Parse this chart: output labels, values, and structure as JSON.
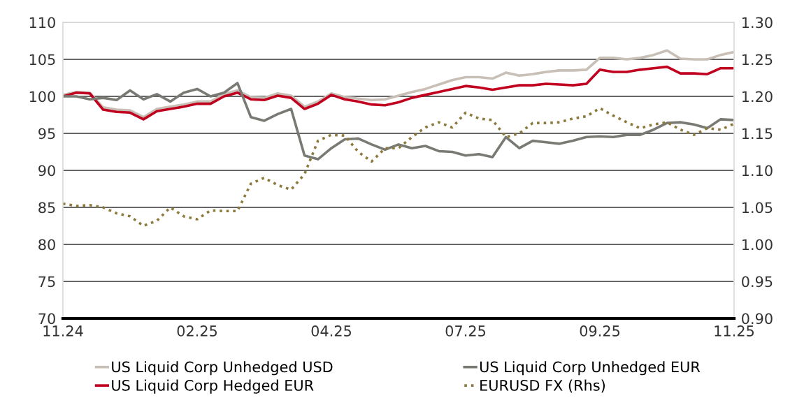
{
  "chart_data": {
    "type": "line",
    "categories": [
      "11.24",
      null,
      null,
      null,
      null,
      null,
      null,
      null,
      null,
      null,
      "02.25",
      null,
      null,
      null,
      null,
      null,
      null,
      null,
      null,
      null,
      "04.25",
      null,
      null,
      null,
      null,
      null,
      null,
      null,
      null,
      null,
      "07.25",
      null,
      null,
      null,
      null,
      null,
      null,
      null,
      null,
      null,
      "09.25",
      null,
      null,
      null,
      null,
      null,
      null,
      null,
      null,
      null,
      "11.25"
    ],
    "series": [
      {
        "name": "US Liquid Corp Unhedged USD",
        "color": "#c8bfb6",
        "values": [
          100.2,
          100.6,
          100.5,
          98.5,
          98.2,
          98.1,
          97.2,
          98.3,
          98.6,
          98.9,
          99.3,
          99.3,
          100.3,
          100.8,
          99.9,
          99.8,
          100.4,
          100.1,
          98.6,
          99.3,
          100.4,
          99.9,
          99.7,
          99.5,
          99.6,
          100.1,
          100.6,
          101,
          101.6,
          102.2,
          102.6,
          102.6,
          102.4,
          103.2,
          102.8,
          103,
          103.3,
          103.5,
          103.5,
          103.6,
          105.2,
          105.2,
          105,
          105.2,
          105.6,
          106.2,
          105.1,
          105,
          105,
          105.6,
          106
        ]
      },
      {
        "name": "US Liquid Corp Hedged EUR",
        "color": "#c0001e",
        "values": [
          100,
          100.5,
          100.4,
          98.2,
          97.9,
          97.8,
          96.9,
          98,
          98.3,
          98.6,
          99,
          99,
          100,
          100.5,
          99.6,
          99.5,
          100.1,
          99.8,
          98.3,
          99,
          100.2,
          99.6,
          99.3,
          98.9,
          98.8,
          99.2,
          99.8,
          100.2,
          100.6,
          101,
          101.4,
          101.2,
          100.9,
          101.2,
          101.5,
          101.5,
          101.7,
          101.6,
          101.5,
          101.7,
          103.6,
          103.3,
          103.3,
          103.6,
          103.8,
          104,
          103.1,
          103.1,
          103,
          103.8,
          103.8
        ]
      },
      {
        "name": "US Liquid Corp Unhedged EUR",
        "color": "#7a7a74",
        "values": [
          100,
          100,
          99.6,
          99.8,
          99.5,
          100.8,
          99.6,
          100.3,
          99.3,
          100.5,
          101,
          100,
          100.5,
          101.8,
          97.2,
          96.7,
          97.6,
          98.3,
          92,
          91.5,
          93,
          94.2,
          94.3,
          93.5,
          92.8,
          93.5,
          93,
          93.3,
          92.6,
          92.5,
          92,
          92.2,
          91.8,
          94.5,
          93,
          94,
          93.8,
          93.6,
          94,
          94.5,
          94.6,
          94.5,
          94.8,
          94.8,
          95.5,
          96.4,
          96.5,
          96.2,
          95.7,
          96.9,
          96.8
        ]
      },
      {
        "name": "EURUSD FX (Rhs)",
        "color": "#8c7a3c",
        "axis": "y2",
        "line_style": "dotted",
        "values": [
          1.055,
          1.052,
          1.053,
          1.05,
          1.042,
          1.038,
          1.025,
          1.032,
          1.05,
          1.038,
          1.034,
          1.046,
          1.045,
          1.045,
          1.082,
          1.09,
          1.08,
          1.074,
          1.095,
          1.14,
          1.148,
          1.147,
          1.125,
          1.112,
          1.13,
          1.13,
          1.145,
          1.158,
          1.165,
          1.158,
          1.178,
          1.17,
          1.168,
          1.145,
          1.15,
          1.164,
          1.164,
          1.165,
          1.17,
          1.173,
          1.184,
          1.174,
          1.165,
          1.157,
          1.162,
          1.165,
          1.155,
          1.148,
          1.157,
          1.155,
          1.163
        ]
      }
    ],
    "ylim": [
      70,
      110
    ],
    "yticks": [
      70,
      75,
      80,
      85,
      90,
      95,
      100,
      105,
      110
    ],
    "y2lim": [
      0.9,
      1.3
    ],
    "y2ticks": [
      {
        "value": 0.9,
        "label": "0.90"
      },
      {
        "value": 0.95,
        "label": "0.95"
      },
      {
        "value": 1.0,
        "label": "1.00"
      },
      {
        "value": 1.05,
        "label": "1.05"
      },
      {
        "value": 1.1,
        "label": "1.10"
      },
      {
        "value": 1.15,
        "label": "1.15"
      },
      {
        "value": 1.2,
        "label": "1.20"
      },
      {
        "value": 1.25,
        "label": "1.25"
      },
      {
        "value": 1.3,
        "label": "1.30"
      }
    ],
    "grid": "y",
    "legend": "bottom",
    "line_style": "solid",
    "marker": "none"
  }
}
